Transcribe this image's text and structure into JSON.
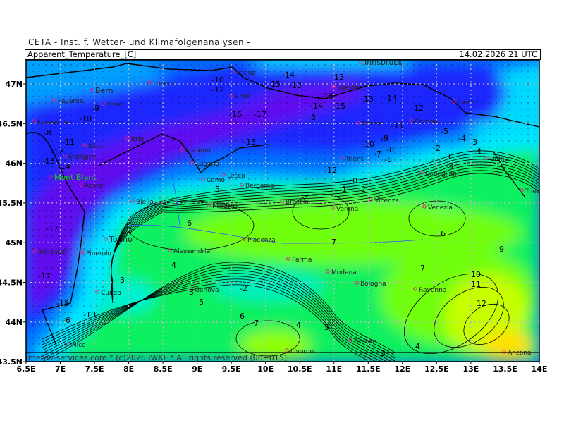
{
  "header": {
    "institute": "CETA - Inst. f. Wetter- und Klimafolgenanalysen -"
  },
  "titlebar": {
    "parameter": "Apparent_Temperature_[C]",
    "valid_time": "14.02.2026 21 UTC"
  },
  "footer": {
    "credit": "meteo-services.com * (c)2026 IWKF * All rights reserved (06+015)"
  },
  "axes": {
    "lat_labels": [
      "47N",
      "46.5N",
      "46N",
      "45.5N",
      "45N",
      "44.5N",
      "44N",
      "43.5N"
    ],
    "lon_labels": [
      "6.5E",
      "7E",
      "7.5E",
      "8E",
      "8.5E",
      "9E",
      "9.5E",
      "10E",
      "10.5E",
      "11E",
      "11.5E",
      "12E",
      "12.5E",
      "13E",
      "13.5E",
      "14E"
    ]
  },
  "cities": [
    "Bern",
    "Payerne",
    "Thun",
    "Lausanne",
    "Luzern",
    "Vaduz",
    "Chur",
    "Innsbruck",
    "Soelden",
    "Lienz",
    "Bozen",
    "Cortina",
    "Sion",
    "Martigny",
    "Brig",
    "Locarno",
    "Lugano",
    "Trient",
    "Mont Blanc",
    "Aosta",
    "Como",
    "Lecco",
    "Bergamo",
    "Conegliano",
    "Udine",
    "Biella",
    "Milano",
    "Brescia",
    "Verona",
    "Vicenza",
    "Venezia",
    "Trieste",
    "Torino",
    "Pinerolo",
    "Alessandria",
    "Piacenza",
    "Parma",
    "Modena",
    "Bologna",
    "Genova",
    "Cuneo",
    "Ravenna",
    "Besancon",
    "Nice",
    "Firenze",
    "Livorno",
    "Ancona"
  ],
  "contour_labels": [
    "-10",
    "-12",
    "-13",
    "-14",
    "-15",
    "-16",
    "-17",
    "-13",
    "-14",
    "-15",
    "-13",
    "-14",
    "-12",
    "-11",
    "-13",
    "-9",
    "-10",
    "-8",
    "-11",
    "-12",
    "-13",
    "-16",
    "-3",
    "-14",
    "-12",
    "-10",
    "-9",
    "-8",
    "-7",
    "-6",
    "-5",
    "-4",
    "-3",
    "-2",
    "-1",
    "0",
    "1",
    "2",
    "3",
    "4",
    "5",
    "6",
    "7",
    "-17",
    "-17",
    "-18",
    "-10",
    "-6",
    "-2",
    "4",
    "5",
    "6",
    "7",
    "9",
    "10",
    "11",
    "12",
    "3",
    "4",
    "3",
    "5",
    "6",
    "7",
    "4",
    "3"
  ],
  "colors": {
    "purple": "#6010f0",
    "dark_blue": "#1a28ff",
    "blue": "#0070ff",
    "light_blue": "#00a8ff",
    "cyan": "#00e8ff",
    "aqua": "#00f0b0",
    "green": "#10f060",
    "lime": "#70ff10",
    "yellow_green": "#c8ff00",
    "yellow": "#ffe000",
    "city_marker": "#e0207a",
    "mont_blanc": "#00e000"
  }
}
